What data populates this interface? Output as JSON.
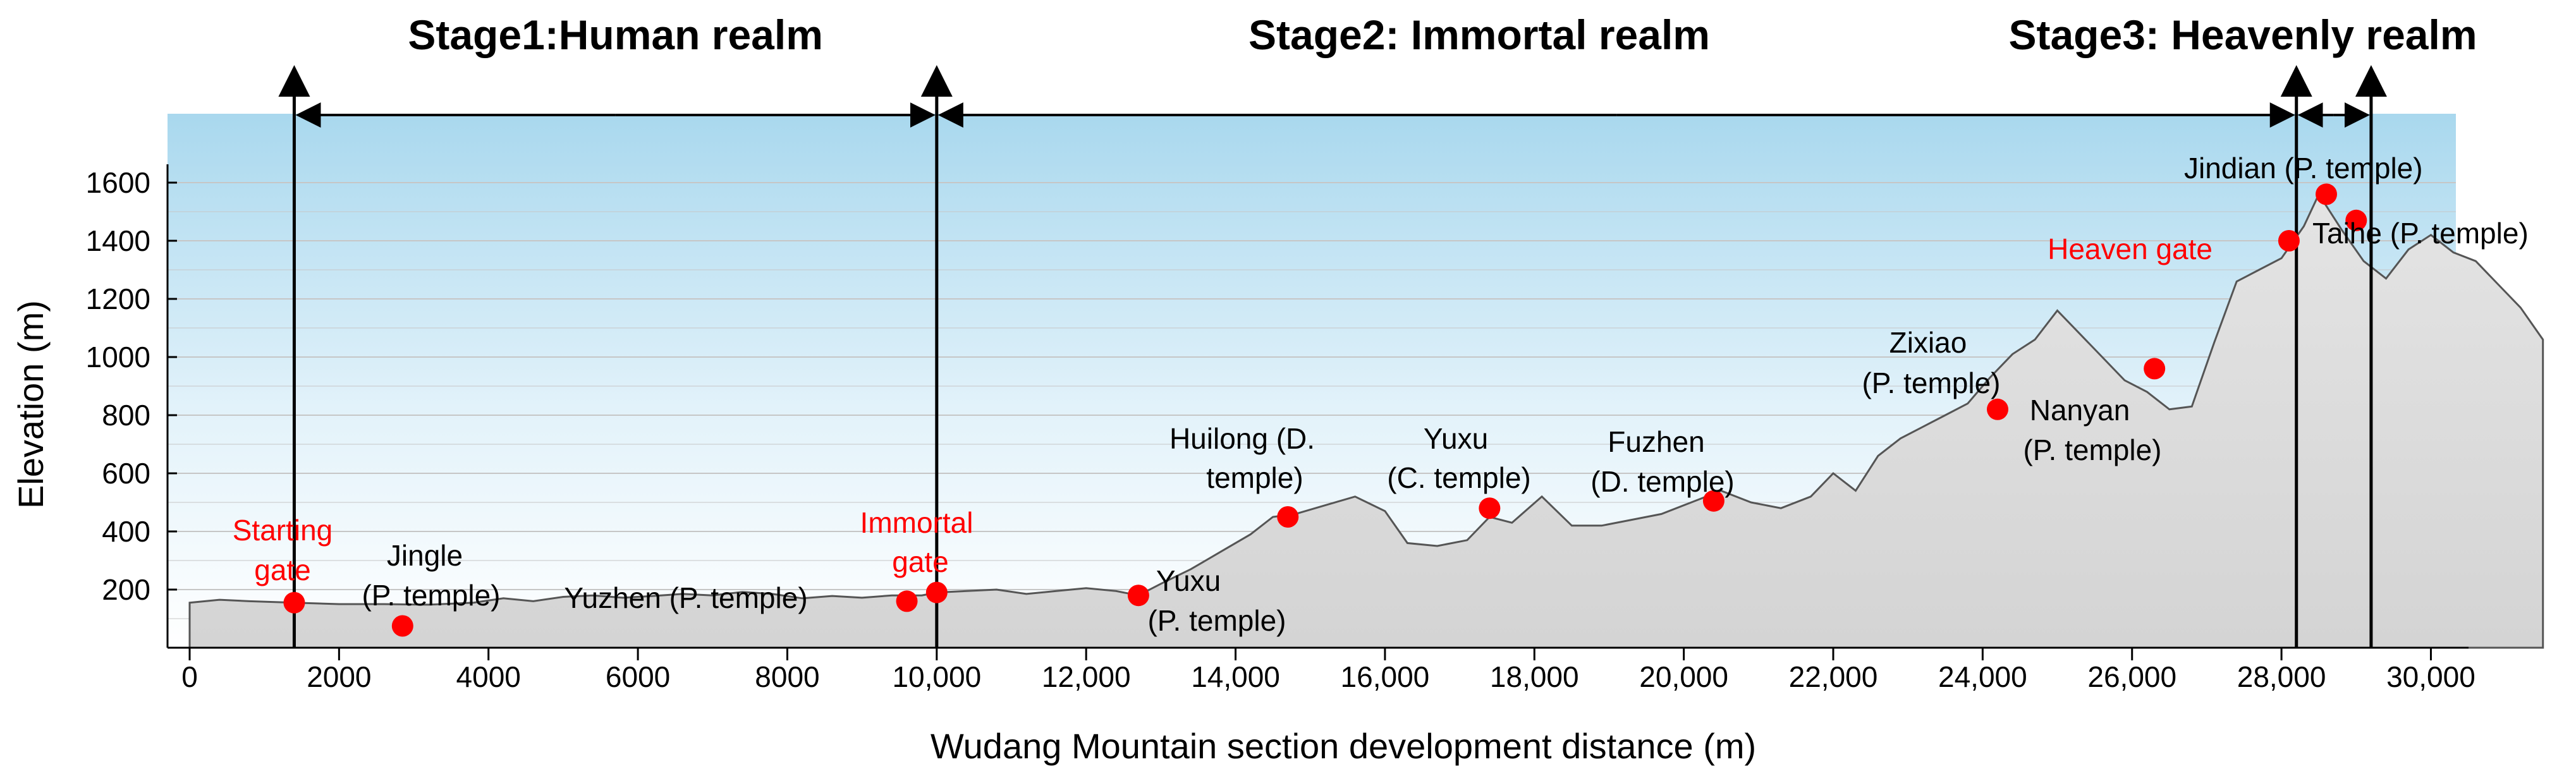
{
  "chart_data": {
    "type": "area",
    "title": "",
    "xlabel": "Wudang Mountain section development distance (m)",
    "ylabel": "Elevation (m)",
    "xlim": [
      0,
      31500
    ],
    "ylim": [
      0,
      1600
    ],
    "x_ticks": [
      "0",
      "2000",
      "4000",
      "6000",
      "8000",
      "10,000",
      "12,000",
      "14,000",
      "16,000",
      "18,000",
      "20,000",
      "22,000",
      "24,000",
      "26,000",
      "28,000",
      "30,000"
    ],
    "y_ticks": [
      "200",
      "400",
      "600",
      "800",
      "1000",
      "1200",
      "1400",
      "1600"
    ],
    "grid": "horizontal",
    "stages": [
      {
        "label": "Stage1:Human realm",
        "x_start": 1400,
        "x_end": 10000
      },
      {
        "label": "Stage2: Immortal realm",
        "x_start": 10000,
        "x_end": 28200
      },
      {
        "label": "Stage3: Heavenly realm",
        "x_start": 28200,
        "x_end": 29200
      }
    ],
    "profile": {
      "x": [
        0,
        400,
        800,
        1400,
        2000,
        2600,
        3200,
        3800,
        4200,
        4600,
        5000,
        5400,
        5800,
        6200,
        6600,
        7000,
        7400,
        7800,
        8200,
        8600,
        9000,
        9400,
        9800,
        10000,
        10400,
        10800,
        11200,
        11600,
        12000,
        12400,
        12700,
        13000,
        13400,
        13800,
        14200,
        14500,
        14800,
        15200,
        15600,
        16000,
        16300,
        16700,
        17100,
        17400,
        17700,
        18100,
        18500,
        18900,
        19300,
        19700,
        20100,
        20500,
        20900,
        21300,
        21700,
        22000,
        22300,
        22600,
        22900,
        23200,
        23500,
        23800,
        24100,
        24400,
        24700,
        25000,
        25300,
        25600,
        25900,
        26200,
        26500,
        26800,
        27100,
        27400,
        27700,
        28000,
        28300,
        28500,
        28800,
        29100,
        29400,
        29700,
        30000,
        30300,
        30600,
        30900,
        31200,
        31500
      ],
      "elevation": [
        155,
        165,
        160,
        155,
        150,
        150,
        148,
        155,
        170,
        160,
        175,
        180,
        172,
        178,
        185,
        180,
        192,
        185,
        170,
        178,
        172,
        180,
        180,
        190,
        195,
        200,
        185,
        195,
        205,
        195,
        180,
        220,
        270,
        330,
        390,
        450,
        460,
        490,
        520,
        470,
        360,
        350,
        370,
        450,
        430,
        520,
        420,
        420,
        440,
        460,
        500,
        540,
        500,
        480,
        520,
        600,
        540,
        660,
        720,
        760,
        800,
        840,
        930,
        1010,
        1060,
        1160,
        1080,
        1000,
        920,
        880,
        820,
        830,
        1050,
        1260,
        1300,
        1340,
        1450,
        1560,
        1440,
        1330,
        1270,
        1370,
        1420,
        1360,
        1330,
        1250,
        1170,
        1060
      ]
    },
    "points": [
      {
        "name": "Starting gate",
        "x": 1400,
        "y": 155,
        "color": "#ff0000"
      },
      {
        "name": "Jingle (P. temple)",
        "x": 2850,
        "y": 75,
        "color": "#ff0000"
      },
      {
        "name": "Yuzhen (P. temple)",
        "x": 9600,
        "y": 160,
        "color": "#ff0000"
      },
      {
        "name": "Immortal gate",
        "x": 10000,
        "y": 190,
        "color": "#ff0000"
      },
      {
        "name": "Yuxu (P. temple)",
        "x": 12700,
        "y": 180,
        "color": "#ff0000"
      },
      {
        "name": "Huilong (D. temple)",
        "x": 14700,
        "y": 450,
        "color": "#ff0000"
      },
      {
        "name": "Yuxu (C. temple)",
        "x": 17400,
        "y": 480,
        "color": "#ff0000"
      },
      {
        "name": "Fuzhen (D. temple)",
        "x": 20400,
        "y": 505,
        "color": "#ff0000"
      },
      {
        "name": "Zixiao (P. temple)",
        "x": 24200,
        "y": 820,
        "color": "#ff0000"
      },
      {
        "name": "Nanyan (P. temple)",
        "x": 26300,
        "y": 960,
        "color": "#ff0000"
      },
      {
        "name": "Heaven gate",
        "x": 28100,
        "y": 1400,
        "color": "#ff0000"
      },
      {
        "name": "Jindian (P. temple)",
        "x": 28600,
        "y": 1560,
        "color": "#ff0000"
      },
      {
        "name": "Taihe (P. temple)",
        "x": 29000,
        "y": 1470,
        "color": "#ff0000"
      }
    ],
    "labels": {
      "starting_gate": [
        "Starting",
        "gate"
      ],
      "jingle": [
        "Jingle",
        "(P. temple)"
      ],
      "yuzhen": [
        "Yuzhen (P. temple)"
      ],
      "immortal_gate": [
        "Immortal",
        "gate"
      ],
      "yuxu_p": [
        "Yuxu",
        "(P. temple)"
      ],
      "huilong": [
        "Huilong (D.",
        "temple)"
      ],
      "yuxu_c": [
        "Yuxu",
        "(C. temple)"
      ],
      "fuzhen": [
        "Fuzhen",
        "(D. temple)"
      ],
      "zixiao": [
        "Zixiao",
        "(P. temple)"
      ],
      "nanyan": [
        "Nanyan",
        "(P. temple)"
      ],
      "heaven_gate": [
        "Heaven gate"
      ],
      "jindian": [
        "Jindian (P. temple)"
      ],
      "taihe": [
        "Taihe (P. temple)"
      ]
    },
    "colors": {
      "marker": "#ff0000",
      "sky_top": "#a9d8ee",
      "ground": "#dcdcdc",
      "grid": "#c6c6c6"
    }
  }
}
